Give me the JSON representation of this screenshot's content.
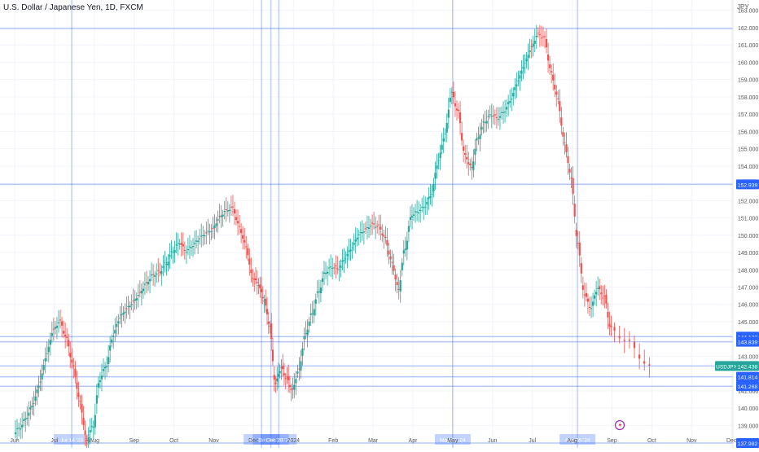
{
  "title": "U.S. Dollar / Japanese Yen, 1D, FXCM",
  "currency": "JPY",
  "symbol_label": "USDJPY",
  "colors": {
    "up": "#26a69a",
    "down": "#ef5350",
    "line": "#2962ff",
    "grid": "#f0f3fa"
  },
  "chart_data": {
    "type": "candlestick",
    "title": "U.S. Dollar / Japanese Yen, 1D, FXCM",
    "ylim": [
      137.7,
      163.6
    ],
    "y_ticks": [
      "139.000",
      "140.000",
      "141.000",
      "143.000",
      "145.000",
      "146.000",
      "147.000",
      "148.000",
      "149.000",
      "150.000",
      "151.000",
      "152.000",
      "153.000",
      "154.000",
      "155.000",
      "156.000",
      "157.000",
      "158.000",
      "159.000",
      "160.000",
      "161.000",
      "162.000",
      "163.000"
    ],
    "x_ticks": [
      "Jun",
      "Jul",
      "Aug",
      "Sep",
      "Oct",
      "Nov",
      "Dec",
      "2024",
      "Feb",
      "Mar",
      "Apr",
      "May",
      "Jun",
      "Jul",
      "Aug",
      "Sep",
      "Oct",
      "Nov",
      "Dec"
    ],
    "price_labels": [
      {
        "value": 152.939,
        "text": "152.939",
        "kind": "level"
      },
      {
        "value": 144.132,
        "text": "144.132",
        "kind": "level"
      },
      {
        "value": 143.839,
        "text": "143.839",
        "kind": "level"
      },
      {
        "value": 142.438,
        "text": "142.438",
        "kind": "last"
      },
      {
        "value": 141.814,
        "text": "141.814",
        "kind": "level"
      },
      {
        "value": 141.268,
        "text": "141.268",
        "kind": "level"
      },
      {
        "value": 137.982,
        "text": "137.982",
        "kind": "level"
      }
    ],
    "horizontal_levels": [
      161.95,
      152.939,
      144.132,
      143.839,
      142.438,
      141.814,
      141.268,
      137.982
    ],
    "vertical_marker_dates": [
      "Jul 14 '23",
      "Dec 07 '23",
      "Dec 14 '23",
      "Dec 20 '23",
      "May 01 '24",
      "Aug 05 '24"
    ],
    "close_path": [
      [
        "Jun",
        138.9
      ],
      [
        "Jun",
        139.5
      ],
      [
        "Jun",
        140.3
      ],
      [
        "Jun",
        141.5
      ],
      [
        "Jun",
        143.1
      ],
      [
        "Jun",
        144.5
      ],
      [
        "Jul",
        145.0
      ],
      [
        "Jul",
        144.0
      ],
      [
        "Jul",
        142.4
      ],
      [
        "Jul",
        140.4
      ],
      [
        "Jul",
        138.2
      ],
      [
        "Jul",
        139.0
      ],
      [
        "Aug",
        141.7
      ],
      [
        "Aug",
        142.5
      ],
      [
        "Aug",
        144.2
      ],
      [
        "Aug",
        145.2
      ],
      [
        "Aug",
        145.7
      ],
      [
        "Aug",
        146.1
      ],
      [
        "Sep",
        146.6
      ],
      [
        "Sep",
        147.2
      ],
      [
        "Sep",
        147.7
      ],
      [
        "Sep",
        147.9
      ],
      [
        "Sep",
        148.4
      ],
      [
        "Sep",
        149.1
      ],
      [
        "Oct",
        149.6
      ],
      [
        "Oct",
        149.1
      ],
      [
        "Oct",
        149.4
      ],
      [
        "Oct",
        149.8
      ],
      [
        "Oct",
        150.1
      ],
      [
        "Oct",
        150.3
      ],
      [
        "Nov",
        151.0
      ],
      [
        "Nov",
        151.4
      ],
      [
        "Nov",
        151.6
      ],
      [
        "Nov",
        150.5
      ],
      [
        "Nov",
        149.4
      ],
      [
        "Nov",
        147.6
      ],
      [
        "Dec",
        147.2
      ],
      [
        "Dec",
        146.3
      ],
      [
        "Dec",
        144.8
      ],
      [
        "Dec",
        141.4
      ],
      [
        "Dec",
        142.3
      ],
      [
        "Dec",
        141.7
      ],
      [
        "Dec",
        141.0
      ],
      [
        "2024",
        142.2
      ],
      [
        "2024",
        144.3
      ],
      [
        "2024",
        145.5
      ],
      [
        "2024",
        146.8
      ],
      [
        "2024",
        147.9
      ],
      [
        "2024",
        148.2
      ],
      [
        "Feb",
        148.1
      ],
      [
        "Feb",
        148.7
      ],
      [
        "Feb",
        149.3
      ],
      [
        "Feb",
        150.0
      ],
      [
        "Feb",
        150.3
      ],
      [
        "Feb",
        150.6
      ],
      [
        "Mar",
        150.5
      ],
      [
        "Mar",
        149.8
      ],
      [
        "Mar",
        148.4
      ],
      [
        "Mar",
        146.9
      ],
      [
        "Mar",
        149.3
      ],
      [
        "Mar",
        151.2
      ],
      [
        "Apr",
        151.4
      ],
      [
        "Apr",
        151.7
      ],
      [
        "Apr",
        152.4
      ],
      [
        "Apr",
        154.3
      ],
      [
        "Apr",
        155.8
      ],
      [
        "Apr",
        158.2
      ],
      [
        "May",
        157.1
      ],
      [
        "May",
        154.6
      ],
      [
        "May",
        153.9
      ],
      [
        "May",
        155.7
      ],
      [
        "May",
        156.6
      ],
      [
        "May",
        157.0
      ],
      [
        "Jun",
        156.8
      ],
      [
        "Jun",
        157.2
      ],
      [
        "Jun",
        157.9
      ],
      [
        "Jun",
        158.9
      ],
      [
        "Jun",
        159.9
      ],
      [
        "Jun",
        160.8
      ],
      [
        "Jul",
        161.6
      ],
      [
        "Jul",
        161.4
      ],
      [
        "Jul",
        159.4
      ],
      [
        "Jul",
        157.9
      ],
      [
        "Jul",
        155.4
      ],
      [
        "Jul",
        153.4
      ],
      [
        "Aug",
        149.6
      ],
      [
        "Aug",
        146.6
      ],
      [
        "Aug",
        145.8
      ],
      [
        "Aug",
        146.9
      ],
      [
        "Aug",
        146.4
      ],
      [
        "Aug",
        144.6
      ],
      [
        "Sep",
        143.8
      ],
      [
        "Sep",
        142.4
      ]
    ]
  }
}
